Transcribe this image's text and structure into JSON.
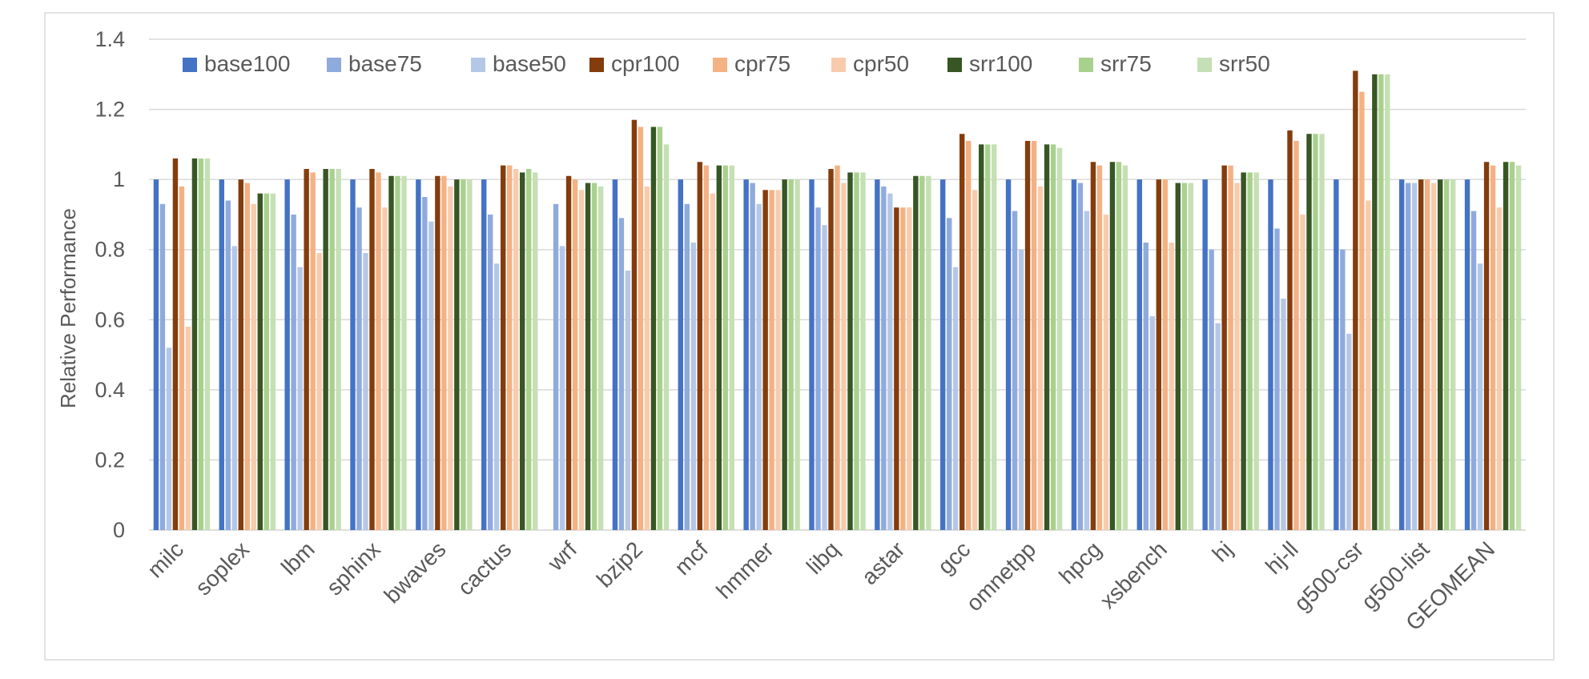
{
  "chart_data": {
    "type": "bar",
    "title": "",
    "xlabel": "",
    "ylabel": "Relative Performance",
    "ylim": [
      0,
      1.4
    ],
    "yticks": [
      "0",
      "0.2",
      "0.4",
      "0.6",
      "0.8",
      "1",
      "1.2",
      "1.4"
    ],
    "grid": true,
    "legend_position": "top-left",
    "categories": [
      "milc",
      "soplex",
      "lbm",
      "sphinx",
      "bwaves",
      "cactus",
      "wrf",
      "bzip2",
      "mcf",
      "hmmer",
      "libq",
      "astar",
      "gcc",
      "omnetpp",
      "hpcg",
      "xsbench",
      "hj",
      "hj-ll",
      "g500-csr",
      "g500-list",
      "GEOMEAN"
    ],
    "series": [
      {
        "name": "base100",
        "color": "#4472c4",
        "values": [
          1.0,
          1.0,
          1.0,
          1.0,
          1.0,
          1.0,
          0,
          1.0,
          1.0,
          1.0,
          1.0,
          1.0,
          1.0,
          1.0,
          1.0,
          1.0,
          1.0,
          1.0,
          1.0,
          1.0,
          1.0
        ]
      },
      {
        "name": "base75",
        "color": "#8faadc",
        "values": [
          0.93,
          0.94,
          0.9,
          0.92,
          0.95,
          0.9,
          0.93,
          0.89,
          0.93,
          0.99,
          0.92,
          0.98,
          0.89,
          0.91,
          0.99,
          0.82,
          0.8,
          0.86,
          0.8,
          0.99,
          0.91
        ]
      },
      {
        "name": "base50",
        "color": "#b4c7e7",
        "values": [
          0.52,
          0.81,
          0.75,
          0.79,
          0.88,
          0.76,
          0.81,
          0.74,
          0.82,
          0.93,
          0.87,
          0.96,
          0.75,
          0.8,
          0.91,
          0.61,
          0.59,
          0.66,
          0.56,
          0.99,
          0.76
        ]
      },
      {
        "name": "cpr100",
        "color": "#843c0c",
        "values": [
          1.06,
          1.0,
          1.03,
          1.03,
          1.01,
          1.04,
          1.01,
          1.17,
          1.05,
          0.97,
          1.03,
          0.92,
          1.13,
          1.11,
          1.05,
          1.0,
          1.04,
          1.14,
          1.31,
          1.0,
          1.05
        ]
      },
      {
        "name": "cpr75",
        "color": "#f4b183",
        "values": [
          0.98,
          0.99,
          1.02,
          1.02,
          1.01,
          1.04,
          1.0,
          1.15,
          1.04,
          0.97,
          1.04,
          0.92,
          1.11,
          1.11,
          1.04,
          1.0,
          1.04,
          1.11,
          1.25,
          1.0,
          1.04
        ]
      },
      {
        "name": "cpr50",
        "color": "#f8cbad",
        "values": [
          0.58,
          0.93,
          0.79,
          0.92,
          0.98,
          1.03,
          0.97,
          0.98,
          0.96,
          0.97,
          0.99,
          0.92,
          0.97,
          0.98,
          0.9,
          0.82,
          0.99,
          0.9,
          0.94,
          0.99,
          0.92
        ]
      },
      {
        "name": "srr100",
        "color": "#375623",
        "values": [
          1.06,
          0.96,
          1.03,
          1.01,
          1.0,
          1.02,
          0.99,
          1.15,
          1.04,
          1.0,
          1.02,
          1.01,
          1.1,
          1.1,
          1.05,
          0.99,
          1.02,
          1.13,
          1.3,
          1.0,
          1.05
        ]
      },
      {
        "name": "srr75",
        "color": "#a9d18e",
        "values": [
          1.06,
          0.96,
          1.03,
          1.01,
          1.0,
          1.03,
          0.99,
          1.15,
          1.04,
          1.0,
          1.02,
          1.01,
          1.1,
          1.1,
          1.05,
          0.99,
          1.02,
          1.13,
          1.3,
          1.0,
          1.05
        ]
      },
      {
        "name": "srr50",
        "color": "#c5e0b4",
        "values": [
          1.06,
          0.96,
          1.03,
          1.01,
          1.0,
          1.02,
          0.98,
          1.1,
          1.04,
          1.0,
          1.02,
          1.01,
          1.1,
          1.09,
          1.04,
          0.99,
          1.02,
          1.13,
          1.3,
          1.0,
          1.04
        ]
      }
    ]
  }
}
